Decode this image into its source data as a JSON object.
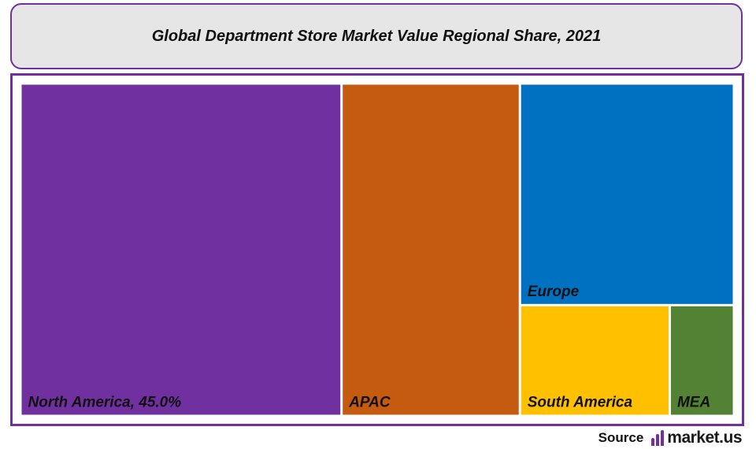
{
  "chart_data": {
    "type": "treemap",
    "title": "Global Department Store Market Value Regional Share, 2021",
    "tiles": [
      {
        "name": "North America",
        "label": "North America, 45.0%",
        "value": 45.0,
        "color": "#7030a0"
      },
      {
        "name": "APAC",
        "label": "APAC",
        "value": 25.0,
        "color": "#c55a11"
      },
      {
        "name": "Europe",
        "label": "Europe",
        "value": 20.0,
        "color": "#0070c0"
      },
      {
        "name": "South America",
        "label": "South America",
        "value": 7.0,
        "color": "#ffc000"
      },
      {
        "name": "MEA",
        "label": "MEA",
        "value": 3.0,
        "color": "#548235"
      }
    ]
  },
  "source": {
    "label": "Source",
    "brand": "market.us"
  },
  "colors": {
    "frame": "#7030a0",
    "title_background": "#e6e6e6"
  }
}
